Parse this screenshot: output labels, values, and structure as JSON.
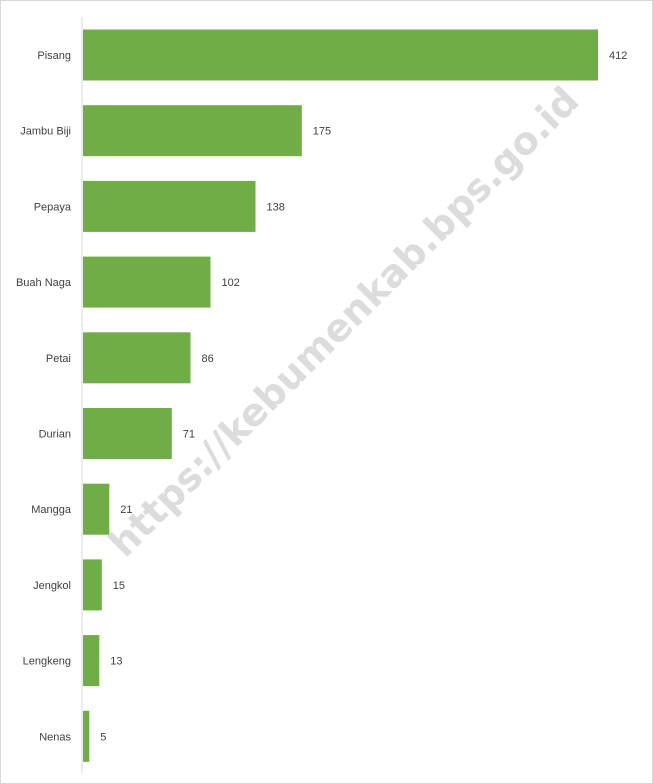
{
  "chart_data": {
    "type": "bar",
    "orientation": "horizontal",
    "categories": [
      "Pisang",
      "Jambu Biji",
      "Pepaya",
      "Buah Naga",
      "Petai",
      "Durian",
      "Mangga",
      "Jengkol",
      "Lengkeng",
      "Nenas"
    ],
    "values": [
      412,
      175,
      138,
      102,
      86,
      71,
      21,
      15,
      13,
      5
    ],
    "value_labels": [
      "412",
      "175",
      "138",
      "102",
      "86",
      "71",
      "21",
      "15",
      "13",
      "5"
    ],
    "title": "",
    "xlabel": "",
    "ylabel": "",
    "xlim": [
      0,
      412
    ],
    "grid": false,
    "legend": "none",
    "bar_color": "#70ad47",
    "axis_color": "#d9d9d9",
    "label_color": "#404040"
  },
  "watermark": {
    "text": "https://kebumenkab.bps.go.id",
    "color": "#bfbfbf"
  }
}
